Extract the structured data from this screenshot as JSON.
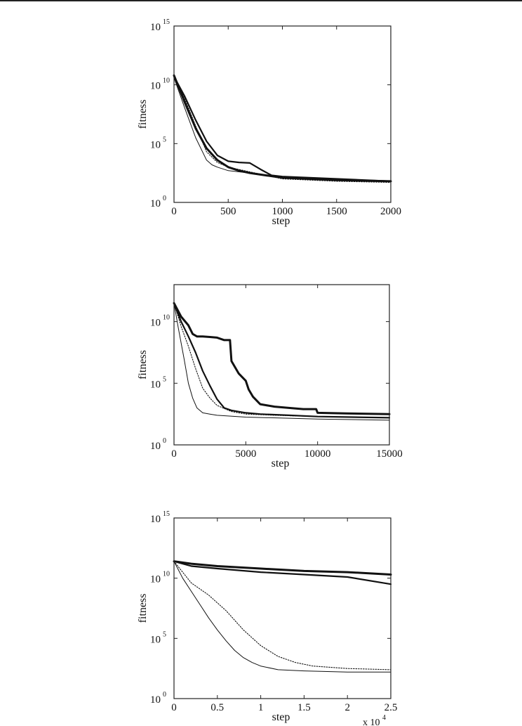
{
  "chart_data": [
    {
      "type": "line",
      "xlabel": "step",
      "ylabel": "fitness",
      "y_scale": "log",
      "xlim": [
        0,
        2000
      ],
      "ylim_log10": [
        0,
        15
      ],
      "x_ticks": [
        0,
        500,
        1000,
        1500,
        2000
      ],
      "x_tick_labels": [
        "0",
        "500",
        "1000",
        "1500",
        "2000"
      ],
      "y_ticks_log10": [
        0,
        5,
        10,
        15
      ],
      "y_tick_bases": [
        "10",
        "10",
        "10",
        "10"
      ],
      "y_tick_exponents": [
        "0",
        "5",
        "10",
        "15"
      ],
      "x_multiplier": "",
      "grid": false,
      "series": [
        {
          "style": "thin",
          "x": [
            0,
            100,
            200,
            300,
            350,
            400,
            500,
            700,
            1000,
            1500,
            2000
          ],
          "log10_y": [
            10.6,
            8.0,
            5.5,
            3.6,
            3.2,
            3.0,
            2.7,
            2.5,
            2.1,
            1.9,
            1.8
          ]
        },
        {
          "style": "dotted",
          "x": [
            0,
            100,
            200,
            300,
            400,
            500,
            700,
            1000,
            1500,
            2000
          ],
          "log10_y": [
            10.7,
            8.8,
            6.5,
            4.3,
            3.4,
            3.0,
            2.6,
            2.0,
            1.8,
            1.7
          ]
        },
        {
          "style": "medium",
          "x": [
            0,
            100,
            200,
            300,
            400,
            500,
            600,
            700,
            800,
            900,
            1000,
            1500,
            2000
          ],
          "log10_y": [
            10.7,
            9.0,
            7.0,
            5.2,
            4.0,
            3.5,
            3.4,
            3.35,
            2.8,
            2.3,
            2.2,
            2.0,
            1.8
          ]
        },
        {
          "style": "thick",
          "x": [
            0,
            100,
            200,
            300,
            400,
            500,
            600,
            700,
            1000,
            1500,
            2000
          ],
          "log10_y": [
            10.8,
            8.5,
            6.3,
            4.6,
            3.6,
            3.0,
            2.7,
            2.5,
            2.1,
            1.9,
            1.8
          ]
        }
      ]
    },
    {
      "type": "line",
      "xlabel": "step",
      "ylabel": "fitness",
      "y_scale": "log",
      "xlim": [
        0,
        15000
      ],
      "ylim_log10": [
        0,
        13
      ],
      "x_ticks": [
        0,
        5000,
        10000,
        15000
      ],
      "x_tick_labels": [
        "0",
        "5000",
        "10000",
        "15000"
      ],
      "y_ticks_log10": [
        0,
        5,
        10
      ],
      "y_tick_bases": [
        "10",
        "10",
        "10"
      ],
      "y_tick_exponents": [
        "0",
        "5",
        "10"
      ],
      "x_multiplier": "",
      "grid": false,
      "series": [
        {
          "style": "thin",
          "x": [
            0,
            300,
            700,
            1000,
            1300,
            1600,
            2000,
            2500,
            3000,
            5000,
            10000,
            15000
          ],
          "log10_y": [
            11.5,
            9.5,
            7.0,
            5.0,
            3.8,
            3.0,
            2.6,
            2.5,
            2.4,
            2.25,
            2.1,
            2.0
          ]
        },
        {
          "style": "dotted",
          "x": [
            0,
            500,
            1000,
            1500,
            2000,
            2500,
            3000,
            4000,
            5000,
            7000,
            10000,
            15000
          ],
          "log10_y": [
            11.5,
            9.6,
            8.0,
            6.2,
            4.6,
            3.8,
            3.2,
            2.7,
            2.5,
            2.4,
            2.3,
            2.2
          ]
        },
        {
          "style": "medium",
          "x": [
            0,
            500,
            1000,
            1500,
            2000,
            2500,
            3000,
            3500,
            4000,
            5000,
            6000,
            8000,
            10000,
            15000
          ],
          "log10_y": [
            11.5,
            10.0,
            8.8,
            7.5,
            6.0,
            4.8,
            3.7,
            3.0,
            2.8,
            2.6,
            2.5,
            2.4,
            2.3,
            2.2
          ]
        },
        {
          "style": "thick",
          "x": [
            0,
            500,
            1000,
            1300,
            1600,
            2000,
            2500,
            3000,
            3500,
            3900,
            4000,
            4500,
            5000,
            5200,
            5500,
            6000,
            6500,
            7000,
            8000,
            9000,
            9900,
            10000,
            12000,
            15000
          ],
          "log10_y": [
            11.5,
            10.4,
            9.7,
            9.0,
            8.8,
            8.8,
            8.75,
            8.7,
            8.5,
            8.5,
            6.8,
            5.8,
            5.2,
            4.5,
            3.9,
            3.3,
            3.2,
            3.1,
            3.0,
            2.9,
            2.9,
            2.6,
            2.55,
            2.5
          ]
        }
      ]
    },
    {
      "type": "line",
      "xlabel": "step",
      "ylabel": "fitness",
      "y_scale": "log",
      "xlim": [
        0,
        2.5
      ],
      "ylim_log10": [
        0,
        15
      ],
      "x_ticks": [
        0,
        0.5,
        1,
        1.5,
        2,
        2.5
      ],
      "x_tick_labels": [
        "0",
        "0.5",
        "1",
        "1.5",
        "2",
        "2.5"
      ],
      "y_ticks_log10": [
        0,
        5,
        10,
        15
      ],
      "y_tick_bases": [
        "10",
        "10",
        "10",
        "10"
      ],
      "y_tick_exponents": [
        "0",
        "5",
        "10",
        "15"
      ],
      "x_multiplier": "x 10",
      "x_multiplier_exp": "4",
      "grid": false,
      "series": [
        {
          "style": "thin",
          "x": [
            0,
            0.1,
            0.2,
            0.3,
            0.4,
            0.5,
            0.6,
            0.7,
            0.8,
            0.9,
            1.0,
            1.2,
            1.5,
            2.0,
            2.5
          ],
          "log10_y": [
            11.4,
            10.0,
            8.9,
            7.8,
            6.7,
            5.7,
            4.8,
            4.0,
            3.4,
            3.0,
            2.7,
            2.4,
            2.3,
            2.2,
            2.2
          ]
        },
        {
          "style": "dotted",
          "x": [
            0,
            0.2,
            0.4,
            0.6,
            0.8,
            1.0,
            1.2,
            1.4,
            1.6,
            2.0,
            2.5
          ],
          "log10_y": [
            11.4,
            9.6,
            8.6,
            7.3,
            5.7,
            4.4,
            3.5,
            3.0,
            2.7,
            2.5,
            2.4
          ]
        },
        {
          "style": "medium",
          "x": [
            0,
            0.2,
            0.5,
            1.0,
            1.5,
            2.0,
            2.5
          ],
          "log10_y": [
            11.4,
            11.0,
            10.8,
            10.5,
            10.3,
            10.1,
            9.5
          ]
        },
        {
          "style": "thick",
          "x": [
            0,
            0.2,
            0.5,
            1.0,
            1.5,
            2.0,
            2.5
          ],
          "log10_y": [
            11.4,
            11.2,
            11.0,
            10.8,
            10.6,
            10.5,
            10.3
          ]
        }
      ]
    }
  ]
}
